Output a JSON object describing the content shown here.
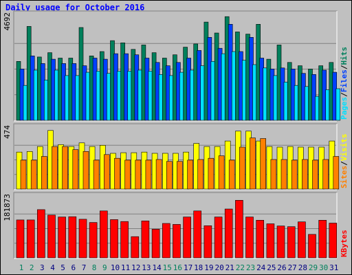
{
  "title": "Daily usage for October 2016",
  "colors": {
    "hits": "#00805c",
    "files": "#0040ff",
    "pages": "#00e0ff",
    "visits": "#ffff00",
    "sites": "#ff8000",
    "kbytes": "#ff0000",
    "weekend_day": "#00805c",
    "weekday": "#000080"
  },
  "chart_data": [
    {
      "type": "bar",
      "panel": "hits-files-pages",
      "ymax_label": "4692",
      "legend": [
        "Pages",
        "/",
        "Files",
        "/",
        "Hits"
      ],
      "series": [
        {
          "name": "Hits",
          "values": [
            2700,
            4300,
            2900,
            3100,
            2850,
            2850,
            4250,
            2950,
            3150,
            3650,
            3550,
            3250,
            3450,
            3100,
            2850,
            3000,
            3350,
            3500,
            4500,
            4000,
            4750,
            4050,
            3950,
            4400,
            2800,
            3450,
            2650,
            2500,
            2350,
            2500,
            2650
          ]
        },
        {
          "name": "Files",
          "values": [
            2350,
            2950,
            2600,
            2800,
            2600,
            2600,
            2500,
            2850,
            2800,
            3050,
            3050,
            3000,
            2850,
            2650,
            2500,
            2650,
            2850,
            3200,
            3800,
            3300,
            4400,
            3150,
            3800,
            2850,
            2350,
            2400,
            2350,
            2150,
            2100,
            2300,
            2200
          ]
        },
        {
          "name": "Pages",
          "values": [
            1600,
            2300,
            1850,
            2300,
            2050,
            2050,
            2200,
            2250,
            2150,
            2250,
            2250,
            2300,
            2250,
            2100,
            2050,
            2200,
            2300,
            2500,
            2700,
            3050,
            3150,
            2750,
            2550,
            2400,
            2050,
            1750,
            1600,
            1550,
            1100,
            1400,
            1450
          ]
        }
      ]
    },
    {
      "type": "bar",
      "panel": "visits-sites",
      "ymax_label": "474",
      "legend": [
        "Sites",
        "/",
        "Visits"
      ],
      "series": [
        {
          "name": "Visits",
          "values": [
            300,
            305,
            345,
            475,
            360,
            345,
            375,
            345,
            355,
            290,
            295,
            295,
            300,
            290,
            290,
            290,
            300,
            370,
            345,
            345,
            390,
            470,
            470,
            390,
            345,
            340,
            345,
            340,
            340,
            340,
            390
          ]
        },
        {
          "name": "Sites",
          "values": [
            235,
            235,
            265,
            345,
            345,
            320,
            305,
            235,
            280,
            250,
            235,
            235,
            235,
            240,
            225,
            225,
            235,
            240,
            250,
            270,
            235,
            340,
            415,
            410,
            240,
            240,
            235,
            240,
            235,
            240,
            265
          ]
        }
      ]
    },
    {
      "type": "bar",
      "panel": "kbytes",
      "ymax_label": "181873",
      "legend": [
        "KBytes"
      ],
      "series": [
        {
          "name": "KBytes",
          "values": [
            118000,
            118000,
            150000,
            133000,
            127000,
            128000,
            120000,
            110000,
            146000,
            119000,
            113000,
            66000,
            115000,
            89000,
            107000,
            104000,
            127000,
            146000,
            100000,
            127000,
            152000,
            179000,
            127000,
            117000,
            106000,
            99000,
            97000,
            112000,
            73000,
            117000,
            108000
          ]
        }
      ]
    }
  ],
  "days": [
    "1",
    "2",
    "3",
    "4",
    "5",
    "6",
    "7",
    "8",
    "9",
    "10",
    "11",
    "12",
    "13",
    "14",
    "15",
    "16",
    "17",
    "18",
    "19",
    "20",
    "21",
    "22",
    "23",
    "24",
    "25",
    "26",
    "27",
    "28",
    "29",
    "30",
    "31"
  ],
  "weekend_days": [
    1,
    2,
    8,
    9,
    15,
    16,
    22,
    23,
    29,
    30
  ]
}
